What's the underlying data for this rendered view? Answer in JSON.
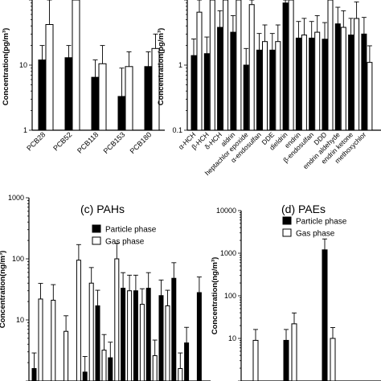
{
  "chart_data": [
    {
      "id": "a",
      "type": "bar",
      "scale": "log",
      "title": "",
      "ylabel": "Concentration(pg/m³)",
      "ylim": [
        1,
        100
      ],
      "yticks": [
        "1",
        "10"
      ],
      "categories": [
        "PCB28",
        "PCB52",
        "PCB118",
        "PCB153",
        "PCB180"
      ],
      "series": [
        {
          "values": [
            12,
            13,
            6.5,
            3.3,
            9.5
          ],
          "errors": [
            20,
            20,
            12,
            9,
            16
          ]
        },
        {
          "values": [
            42,
            100,
            10.5,
            9.5,
            18
          ],
          "errors": [
            100,
            100,
            20,
            16,
            30
          ]
        }
      ]
    },
    {
      "id": "b",
      "type": "bar",
      "scale": "log",
      "title": "",
      "ylabel": "Concentration(pg/m³)",
      "ylim": [
        0.1,
        10
      ],
      "yticks": [
        "0.1",
        "1",
        "10"
      ],
      "categories": [
        "α-HCH",
        "β-HCH",
        "δ-HCH",
        "aldrin",
        "heptachlor epoxide",
        "α-endosulfan",
        "DDE",
        "dieldrin",
        "endrin",
        "β-endosulfan",
        "DDD",
        "endrin aldehyde",
        "endrin ketone",
        "methoxychlor"
      ],
      "series": [
        {
          "values": [
            1.4,
            1.5,
            3.8,
            3.2,
            1.0,
            1.7,
            1.7,
            9.0,
            2.6,
            2.6,
            2.5,
            4.3,
            2.9,
            3.0
          ]
        },
        {
          "values": [
            6.5,
            10,
            10,
            10,
            8.5,
            2.3,
            2.3,
            10,
            2.9,
            3.2,
            10,
            3.8,
            5.2,
            1.1
          ]
        }
      ]
    },
    {
      "id": "c",
      "type": "bar",
      "scale": "log",
      "title": "(c) PAHs",
      "ylabel": "Concentration(ng/m³)",
      "ylim": [
        1,
        1000
      ],
      "yticks": [
        "1000",
        "100",
        "10"
      ],
      "legend": [
        "Particle phase",
        "Gas phase"
      ],
      "series": [
        {
          "name": "Particle phase",
          "values": [
            1.6,
            0,
            0,
            0,
            1.4,
            17,
            2.4,
            33,
            30,
            33,
            25,
            48,
            4.2,
            28
          ]
        },
        {
          "name": "Gas phase",
          "values": [
            22,
            21,
            6.5,
            95,
            40,
            3.2,
            100,
            30,
            18,
            2.6,
            17,
            1.6,
            0,
            0
          ]
        }
      ]
    },
    {
      "id": "d",
      "type": "bar",
      "scale": "log",
      "title": "(d) PAEs",
      "ylabel": "Concentration(ng/m³)",
      "ylim": [
        1,
        10000
      ],
      "yticks": [
        "10000",
        "1000",
        "100",
        "10"
      ],
      "legend": [
        "Particle phase",
        "Gas phase"
      ],
      "series": [
        {
          "name": "Particle phase",
          "values": [
            0,
            0,
            9,
            0,
            1200,
            0
          ]
        },
        {
          "name": "Gas phase",
          "values": [
            9,
            0,
            22,
            0,
            10,
            0
          ]
        }
      ]
    }
  ]
}
